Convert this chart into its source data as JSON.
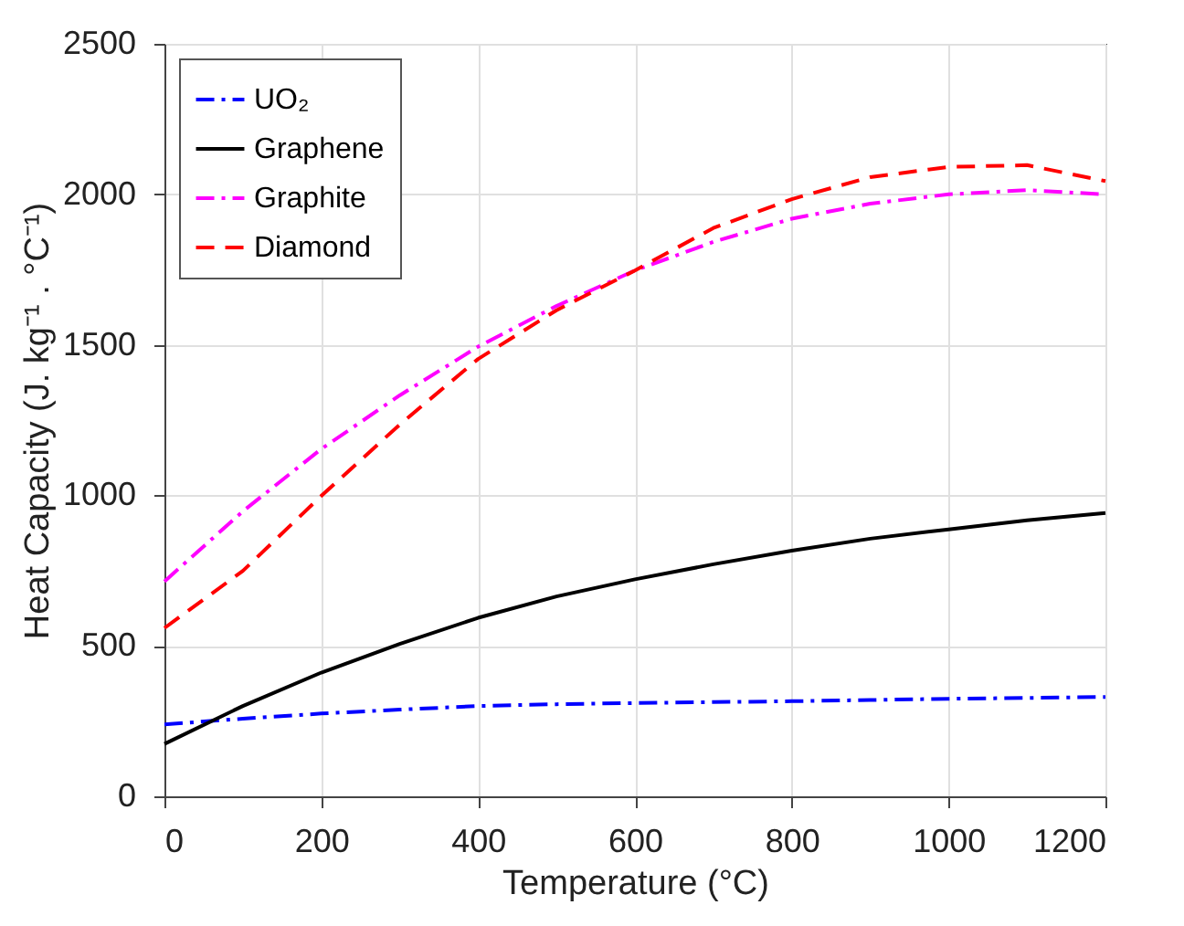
{
  "chart_data": {
    "type": "line",
    "xlabel": "Temperature  (°C)",
    "ylabel": "Heat Capacity (J. kg⁻¹ . °C⁻¹)",
    "x": [
      0,
      100,
      200,
      300,
      400,
      500,
      600,
      700,
      800,
      900,
      1000,
      1100,
      1200
    ],
    "xlim": [
      0,
      1200
    ],
    "xticks": [
      0,
      200,
      400,
      600,
      800,
      1000,
      1200
    ],
    "ylim": [
      0,
      2500
    ],
    "yticks": [
      0,
      500,
      1000,
      1500,
      2000,
      2500
    ],
    "grid": true,
    "legend": "top left",
    "marker": "none",
    "series": [
      {
        "name": "UO₂",
        "color": "#0000ff",
        "line_style": "dashdot",
        "values": [
          239,
          258,
          275,
          288,
          300,
          306,
          310,
          313,
          316,
          320,
          324,
          327,
          330
        ]
      },
      {
        "name": "Graphene",
        "color": "#000000",
        "line_style": "solid",
        "values": [
          174,
          300,
          411,
          506,
          593,
          664,
          721,
          771,
          816,
          856,
          887,
          917,
          941
        ]
      },
      {
        "name": "Graphite",
        "color": "#ff00ff",
        "line_style": "dashdot",
        "values": [
          714,
          947,
          1154,
          1332,
          1494,
          1629,
          1747,
          1842,
          1919,
          1969,
          2000,
          2014,
          2000
        ]
      },
      {
        "name": "Diamond",
        "color": "#ff0000",
        "line_style": "dashed",
        "values": [
          559,
          749,
          998,
          1235,
          1453,
          1615,
          1747,
          1888,
          1984,
          2057,
          2091,
          2097,
          2044
        ]
      }
    ]
  }
}
